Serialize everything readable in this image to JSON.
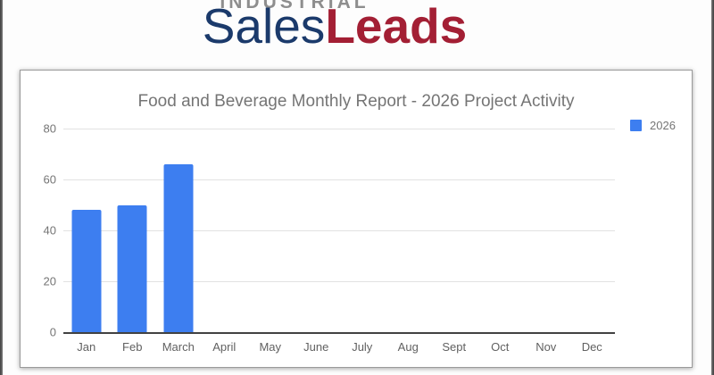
{
  "logo": {
    "industrial": "INDUSTRIAL",
    "sales": "Sales",
    "leads": "Leads",
    "industrial_color": "#8e8e8e",
    "sales_color": "#1b3a6b",
    "leads_color": "#a31f34"
  },
  "chart_data": {
    "type": "bar",
    "title": "Food and Beverage Monthly Report - 2026 Project Activity",
    "categories": [
      "Jan",
      "Feb",
      "March",
      "April",
      "May",
      "June",
      "July",
      "Aug",
      "Sept",
      "Oct",
      "Nov",
      "Dec"
    ],
    "series": [
      {
        "name": "2026",
        "values": [
          48,
          50,
          66,
          null,
          null,
          null,
          null,
          null,
          null,
          null,
          null,
          null
        ]
      }
    ],
    "xlabel": "",
    "ylabel": "",
    "ylim": [
      0,
      80
    ],
    "yticks": [
      0,
      20,
      40,
      60,
      80
    ],
    "bar_color": "#3d7ef0",
    "grid": true,
    "legend_position": "top-right"
  }
}
